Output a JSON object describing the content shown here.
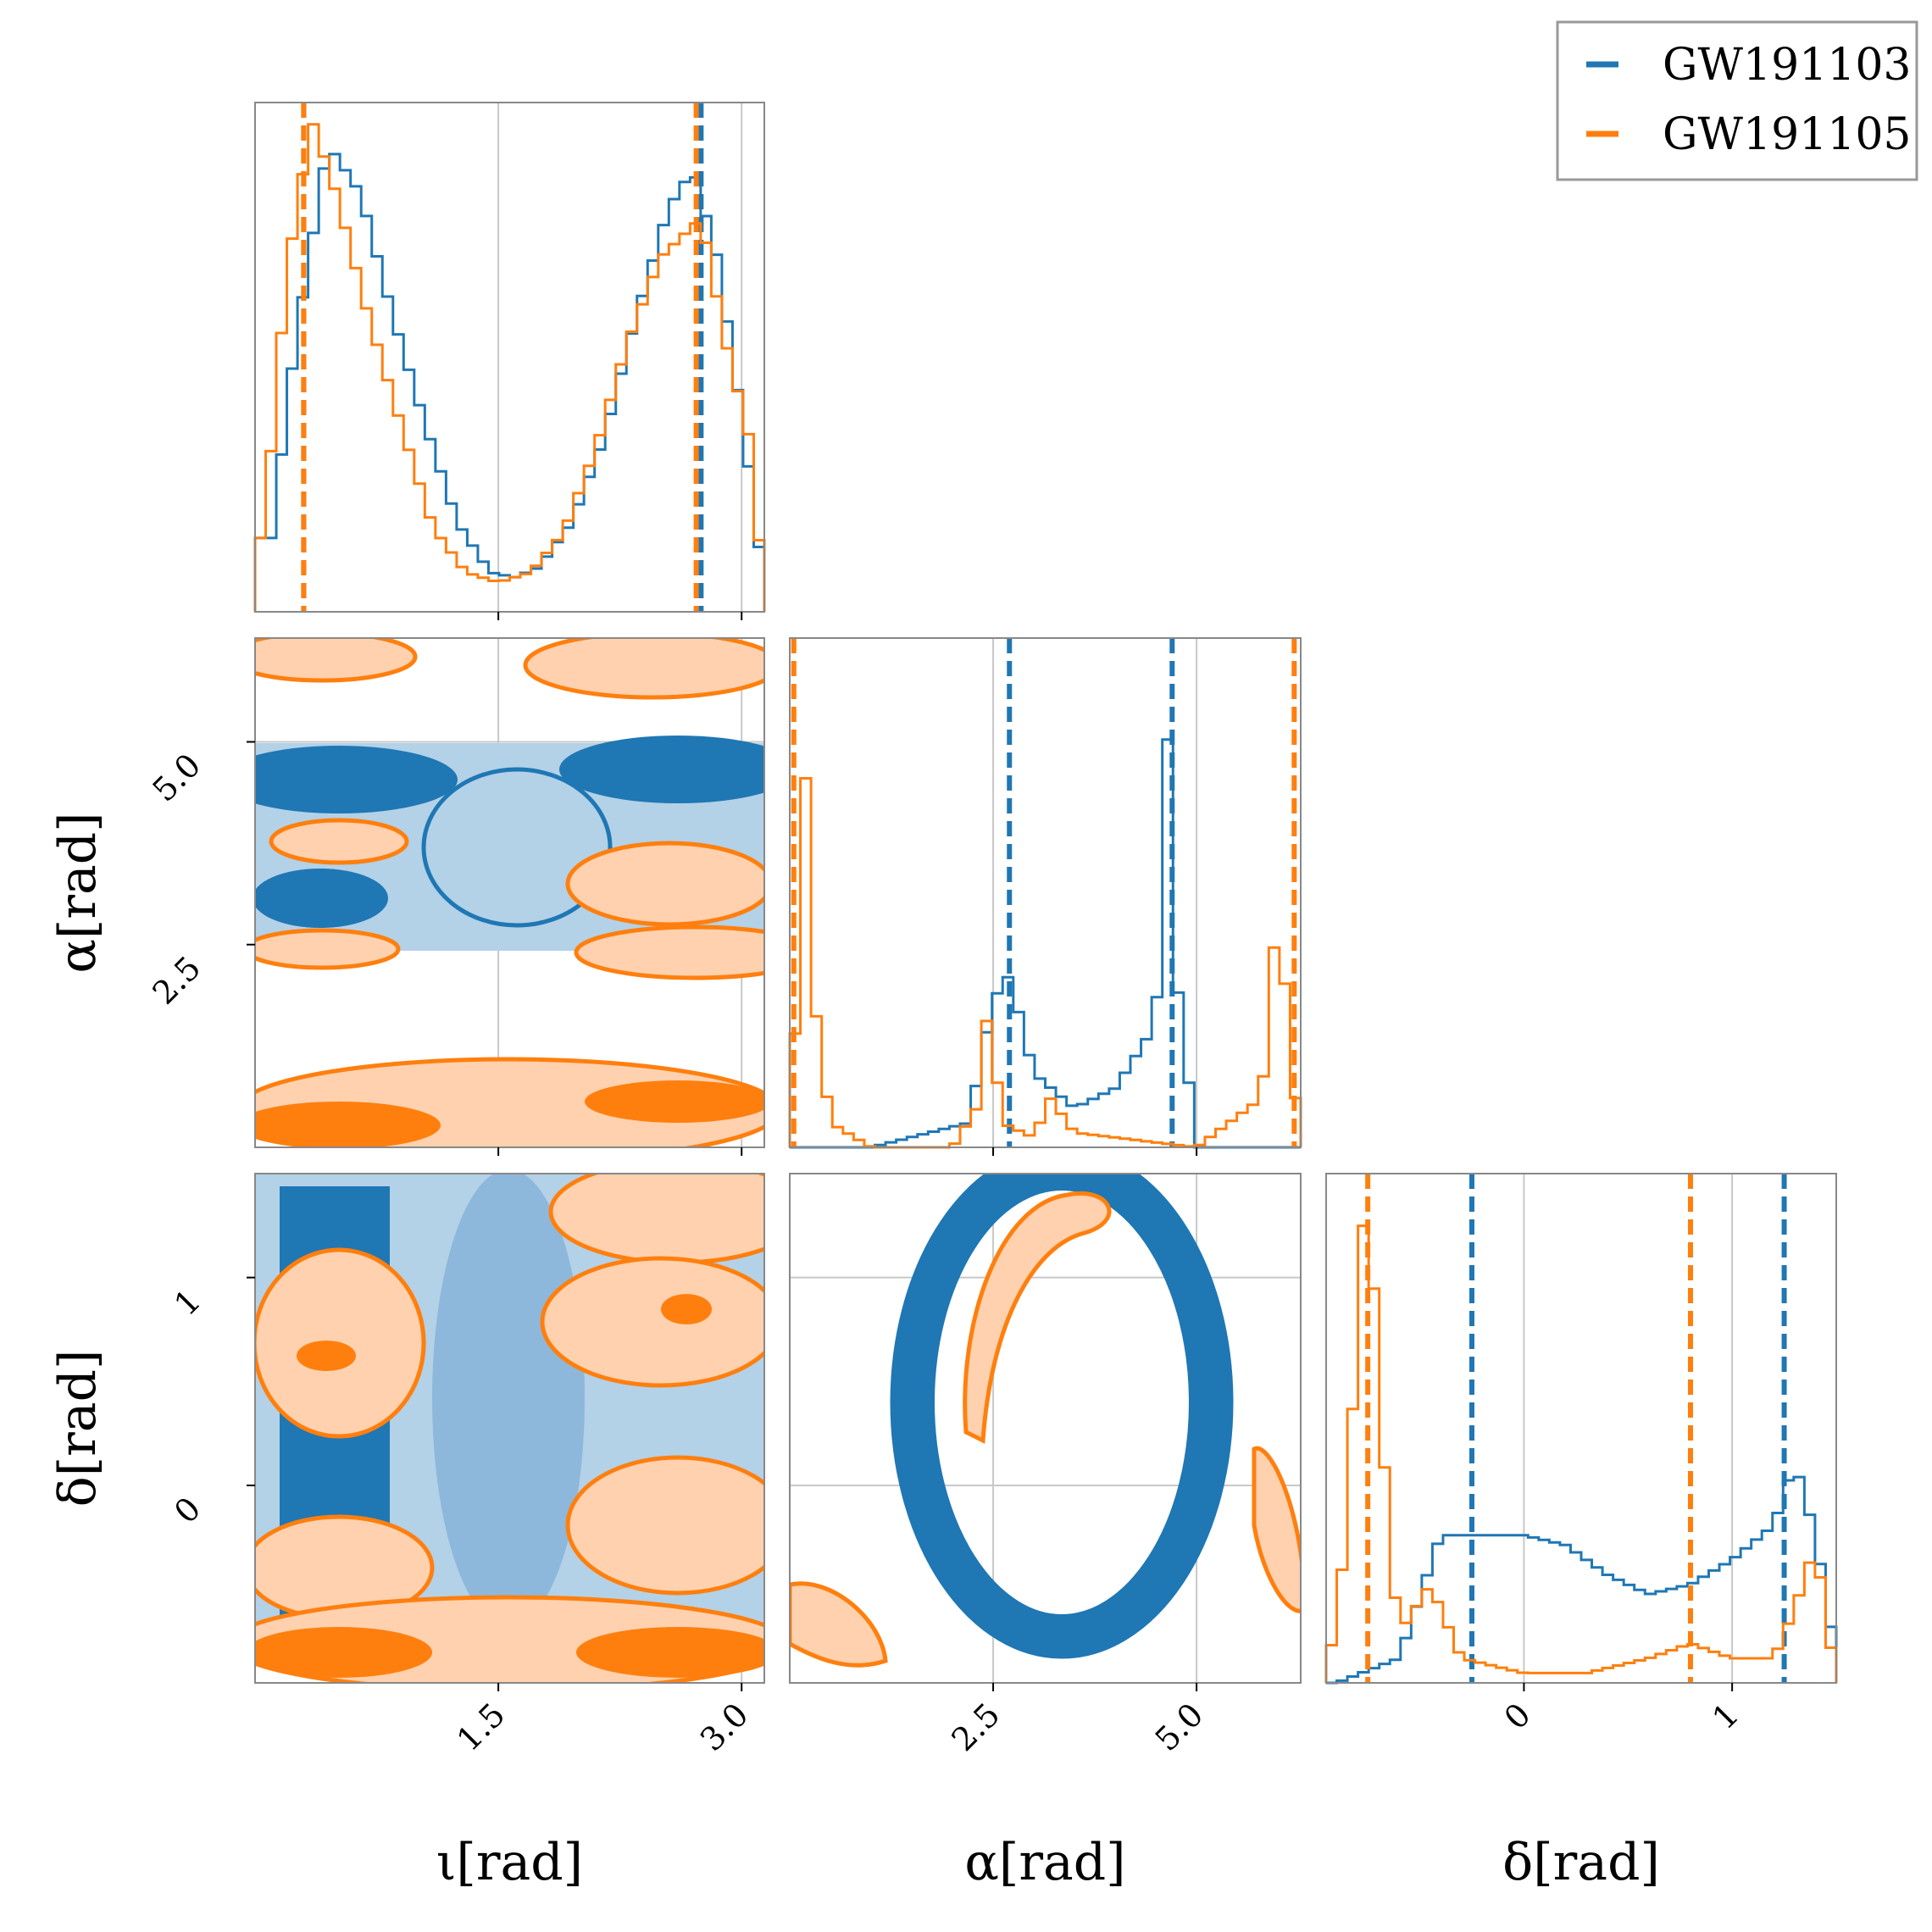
{
  "chart_data": {
    "type": "corner",
    "parameters": [
      {
        "key": "iota",
        "label": "ι[rad]",
        "range": [
          0.0,
          3.14
        ],
        "ticks": [
          1.5,
          3.0
        ],
        "tick_labels": [
          "1.5",
          "3.0"
        ]
      },
      {
        "key": "alpha",
        "label": "α[rad]",
        "range": [
          0.0,
          6.28
        ],
        "ticks": [
          2.5,
          5.0
        ],
        "tick_labels": [
          "2.5",
          "5.0"
        ]
      },
      {
        "key": "delta",
        "label": "δ[rad]",
        "range": [
          -0.95,
          1.5
        ],
        "ticks": [
          0,
          1
        ],
        "tick_labels": [
          "0",
          "1"
        ]
      }
    ],
    "series": [
      {
        "name": "GW191103",
        "color": "#1f77b4",
        "marginals": {
          "iota": {
            "x": [
              0.1,
              0.25,
              0.45,
              0.65,
              0.85,
              1.05,
              1.25,
              1.45,
              1.6,
              1.75,
              1.95,
              2.15,
              2.35,
              2.55,
              2.7,
              2.85,
              3.0,
              3.12
            ],
            "density": [
              0.15,
              0.55,
              0.95,
              0.85,
              0.6,
              0.38,
              0.18,
              0.08,
              0.07,
              0.09,
              0.18,
              0.35,
              0.6,
              0.82,
              0.9,
              0.72,
              0.4,
              0.1
            ]
          },
          "alpha": {
            "x": [
              0.2,
              1.0,
              2.2,
              2.5,
              2.7,
              3.0,
              3.5,
              4.0,
              4.5,
              4.65,
              4.75,
              5.0,
              5.6,
              6.1
            ],
            "density": [
              0.0,
              0.0,
              0.05,
              0.3,
              0.35,
              0.15,
              0.08,
              0.12,
              0.25,
              0.85,
              0.35,
              0.0,
              0.0,
              0.0
            ]
          },
          "delta": {
            "x": [
              -0.9,
              -0.6,
              -0.4,
              -0.2,
              0.0,
              0.2,
              0.4,
              0.6,
              0.8,
              1.0,
              1.2,
              1.3,
              1.4,
              1.5
            ],
            "density": [
              0.0,
              0.05,
              0.3,
              0.3,
              0.3,
              0.28,
              0.22,
              0.18,
              0.2,
              0.25,
              0.32,
              0.45,
              0.3,
              0.05
            ]
          }
        },
        "quantiles": {
          "iota": [
            0.3,
            2.75
          ],
          "alpha": [
            2.7,
            4.7
          ],
          "delta": [
            -0.25,
            1.25
          ]
        }
      },
      {
        "name": "GW191105",
        "color": "#ff7f0e",
        "marginals": {
          "iota": {
            "x": [
              0.05,
              0.2,
              0.35,
              0.5,
              0.7,
              0.9,
              1.1,
              1.3,
              1.5,
              1.7,
              1.9,
              2.1,
              2.3,
              2.5,
              2.75,
              2.9,
              3.05,
              3.12
            ],
            "density": [
              0.15,
              0.7,
              1.0,
              0.85,
              0.6,
              0.38,
              0.17,
              0.08,
              0.06,
              0.08,
              0.16,
              0.33,
              0.55,
              0.72,
              0.8,
              0.55,
              0.35,
              0.1
            ]
          },
          "alpha": {
            "x": [
              0.05,
              0.15,
              0.3,
              0.5,
              0.7,
              1.0,
              2.0,
              2.3,
              2.45,
              2.6,
              3.0,
              3.2,
              3.5,
              4.0,
              5.0,
              5.8,
              6.0,
              6.2
            ],
            "density": [
              0.1,
              0.95,
              0.3,
              0.05,
              0.03,
              0.0,
              0.0,
              0.08,
              0.3,
              0.05,
              0.02,
              0.1,
              0.03,
              0.02,
              0.0,
              0.1,
              0.5,
              0.1
            ]
          },
          "delta": {
            "x": [
              -0.95,
              -0.85,
              -0.78,
              -0.72,
              -0.65,
              -0.6,
              -0.45,
              -0.3,
              0.0,
              0.3,
              0.6,
              0.8,
              1.0,
              1.2,
              1.3,
              1.4,
              1.5
            ],
            "density": [
              0.0,
              0.3,
              0.95,
              0.8,
              0.3,
              0.1,
              0.2,
              0.05,
              0.02,
              0.02,
              0.05,
              0.08,
              0.05,
              0.05,
              0.15,
              0.28,
              0.0
            ]
          }
        },
        "quantiles": {
          "iota": [
            0.3,
            2.72
          ],
          "alpha": [
            0.05,
            6.2
          ],
          "delta": [
            -0.75,
            0.8
          ]
        }
      }
    ],
    "grid": true,
    "legend": {
      "placement": "top-right",
      "entries": [
        "GW191103",
        "GW191105"
      ]
    }
  }
}
